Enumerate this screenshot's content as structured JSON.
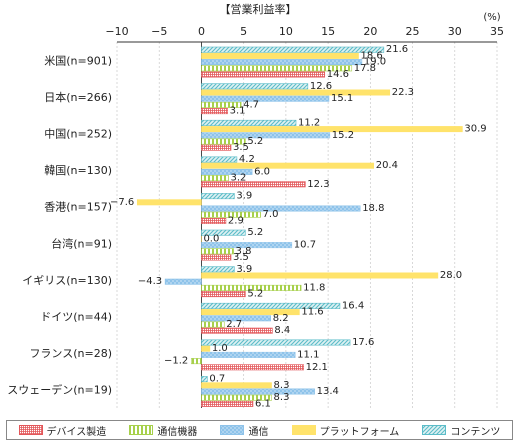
{
  "chart_data": {
    "type": "bar",
    "orientation": "horizontal",
    "title": "【営業利益率】",
    "unit": "(%)",
    "xlim": [
      -10,
      35
    ],
    "xticks": [
      -10,
      -5,
      0,
      5,
      10,
      15,
      20,
      25,
      30,
      35
    ],
    "grid": true,
    "legend_position": "bottom",
    "categories": [
      "米国(n=901)",
      "日本(n=266)",
      "中国(n=252)",
      "韓国(n=130)",
      "香港(n=157)",
      "台湾(n=91)",
      "イギリス(n=130)",
      "ドイツ(n=44)",
      "フランス(n=28)",
      "スウェーデン(n=19)"
    ],
    "series": [
      {
        "name": "コンテンツ",
        "color": "#5bbcc8",
        "pattern": "diagonal",
        "values": [
          21.6,
          12.6,
          11.2,
          4.2,
          3.9,
          5.2,
          3.9,
          16.4,
          17.6,
          0.7
        ]
      },
      {
        "name": "プラットフォーム",
        "color": "#ffe36b",
        "pattern": "solid",
        "values": [
          18.6,
          22.3,
          30.9,
          20.4,
          -7.6,
          0.0,
          28.0,
          11.6,
          1.0,
          8.3
        ]
      },
      {
        "name": "通信",
        "color": "#8ec3ea",
        "pattern": "dots",
        "values": [
          19.0,
          15.1,
          15.2,
          6.0,
          18.8,
          10.7,
          -4.3,
          8.2,
          11.1,
          13.4
        ]
      },
      {
        "name": "通信機器",
        "color": "#a7d04b",
        "pattern": "vertical",
        "values": [
          17.8,
          4.7,
          5.2,
          3.2,
          7.0,
          3.8,
          11.8,
          2.7,
          -1.2,
          8.3
        ]
      },
      {
        "name": "デバイス製造",
        "color": "#e3575a",
        "pattern": "grid",
        "values": [
          14.6,
          3.1,
          3.5,
          12.3,
          2.9,
          3.5,
          5.2,
          8.4,
          12.1,
          6.1
        ]
      }
    ],
    "legend_order": [
      "デバイス製造",
      "通信機器",
      "通信",
      "プラットフォーム",
      "コンテンツ"
    ],
    "value_labels": [
      [
        "21.6",
        "18.6",
        "19.0",
        "17.8",
        "14.6"
      ],
      [
        "12.6",
        "22.3",
        "15.1",
        "4.7",
        "3.1"
      ],
      [
        "11.2",
        "30.9",
        "15.2",
        "5.2",
        "3.5"
      ],
      [
        "4.2",
        "20.4",
        "6.0",
        "3.2",
        "12.3"
      ],
      [
        "3.9",
        "−7.6",
        "18.8",
        "7.0",
        "2.9"
      ],
      [
        "5.2",
        "0.0",
        "10.7",
        "3.8",
        "3.5"
      ],
      [
        "3.9",
        "28.0",
        "−4.3",
        "11.8",
        "5.2"
      ],
      [
        "16.4",
        "11.6",
        "8.2",
        "2.7",
        "8.4"
      ],
      [
        "17.6",
        "1.0",
        "11.1",
        "−1.2",
        "12.1"
      ],
      [
        "0.7",
        "8.3",
        "13.4",
        "8.3",
        "6.1"
      ]
    ]
  }
}
